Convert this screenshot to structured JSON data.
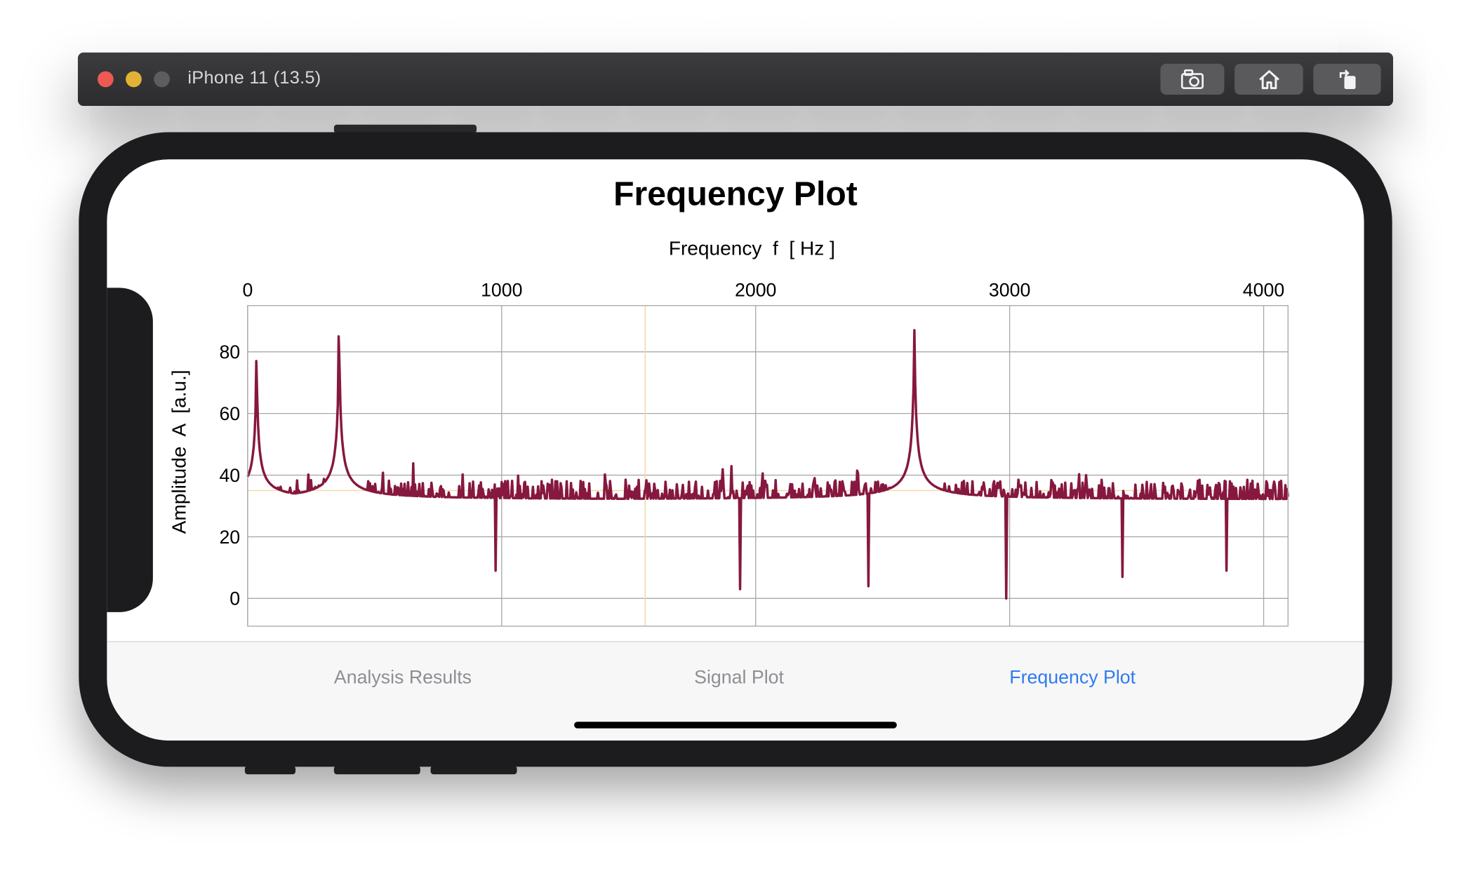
{
  "simulator": {
    "title": "iPhone 11 (13.5)",
    "buttons": [
      "screenshot-icon",
      "home-icon",
      "rotate-icon"
    ]
  },
  "page": {
    "title": "Frequency Plot"
  },
  "tabs": [
    {
      "label": "Analysis Results",
      "active": false
    },
    {
      "label": "Signal Plot",
      "active": false
    },
    {
      "label": "Frequency Plot",
      "active": true
    }
  ],
  "colors": {
    "series": "#861840",
    "active_tab": "#2f7bf0",
    "inactive_tab": "#8e8e93",
    "crosshair": "#f5d9a8",
    "grid": "#a9a9a9"
  },
  "chart_data": {
    "type": "line",
    "title": "",
    "xlabel": "Frequency  f  [ Hz ]",
    "ylabel": "Amplitude  A  [a.u.]",
    "x_axis_position": "top",
    "xlim": [
      0,
      4096
    ],
    "ylim": [
      -9,
      95
    ],
    "x_ticks": [
      0,
      1000,
      2000,
      3000,
      4000
    ],
    "x_tick_labels": [
      "0",
      "1000",
      "2000",
      "3000",
      "4000"
    ],
    "y_ticks": [
      0,
      20,
      40,
      60,
      80
    ],
    "y_tick_labels": [
      "0",
      "20",
      "40",
      "60",
      "80"
    ],
    "grid": true,
    "crosshair": {
      "x": 1565,
      "y": 35
    },
    "series": [
      {
        "name": "",
        "noise_level": 32,
        "peaks": [
          {
            "x": 35,
            "y": 77
          },
          {
            "x": 360,
            "y": 85
          },
          {
            "x": 2625,
            "y": 87
          }
        ],
        "dips": [
          {
            "x": 975,
            "y": 9
          },
          {
            "x": 1940,
            "y": 3
          },
          {
            "x": 2445,
            "y": 4
          },
          {
            "x": 2985,
            "y": 0
          },
          {
            "x": 3445,
            "y": 7
          },
          {
            "x": 3855,
            "y": 9
          }
        ]
      }
    ]
  }
}
